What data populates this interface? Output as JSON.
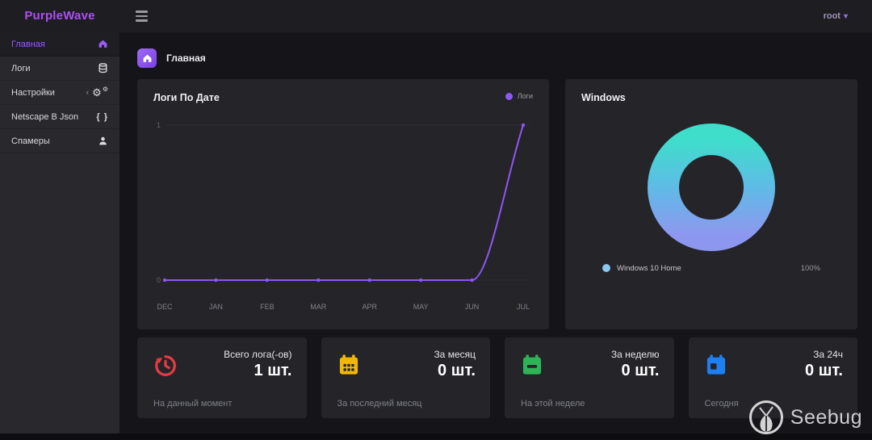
{
  "colors": {
    "brand": "#ae4ff5",
    "accent": "#9b5cf6"
  },
  "icons": {
    "chevron_left": "‹",
    "chevron_down": "▾",
    "gear": "⚙",
    "braces": "{ }"
  },
  "navbar": {
    "brand": "PurpleWave",
    "user": "root"
  },
  "sidebar": {
    "items": [
      {
        "label": "Главная",
        "icon": "home",
        "active": true
      },
      {
        "label": "Логи",
        "icon": "database",
        "active": false
      },
      {
        "label": "Настройки",
        "icon": "gears",
        "active": false,
        "collapsible": true
      },
      {
        "label": "Netscape B Json",
        "icon": "braces",
        "active": false
      },
      {
        "label": "Спамеры",
        "icon": "user",
        "active": false
      }
    ]
  },
  "breadcrumb": {
    "label": "Главная",
    "icon": "home"
  },
  "chart_data": [
    {
      "type": "line",
      "title": "Логи По Дате",
      "categories": [
        "DEC",
        "JAN",
        "FEB",
        "MAR",
        "APR",
        "MAY",
        "JUN",
        "JUL"
      ],
      "series": [
        {
          "name": "Логи",
          "values": [
            0,
            0,
            0,
            0,
            0,
            0,
            0,
            1
          ],
          "color": "#8e57f2"
        }
      ],
      "ylim": [
        0,
        1
      ],
      "yticks": [
        0,
        1
      ],
      "grid": true,
      "legend_position": "top-right"
    },
    {
      "type": "donut",
      "title": "Windows",
      "slices": [
        {
          "label": "Windows 10 Home",
          "value": 100,
          "display": "100%"
        }
      ],
      "gradient": [
        "#3edecb",
        "#5fbbe6",
        "#8e97f0"
      ],
      "legend_dot_color": "#8cc7f0",
      "legend_position": "bottom"
    }
  ],
  "stats": [
    {
      "label": "Всего лога(-ов)",
      "value": "1 шт.",
      "footer": "На данный момент",
      "icon": "history",
      "icon_color": "#e23c44"
    },
    {
      "label": "За месяц",
      "value": "0 шт.",
      "footer": "За последний месяц",
      "icon": "calendar",
      "icon_color": "#f2b705"
    },
    {
      "label": "За неделю",
      "value": "0 шт.",
      "footer": "На этой неделе",
      "icon": "calendar-minus",
      "icon_color": "#2fb357"
    },
    {
      "label": "За 24ч",
      "value": "0 шт.",
      "footer": "Сегодня",
      "icon": "calendar-day",
      "icon_color": "#1e7ff2"
    }
  ],
  "watermark": {
    "text": "Seebug"
  }
}
